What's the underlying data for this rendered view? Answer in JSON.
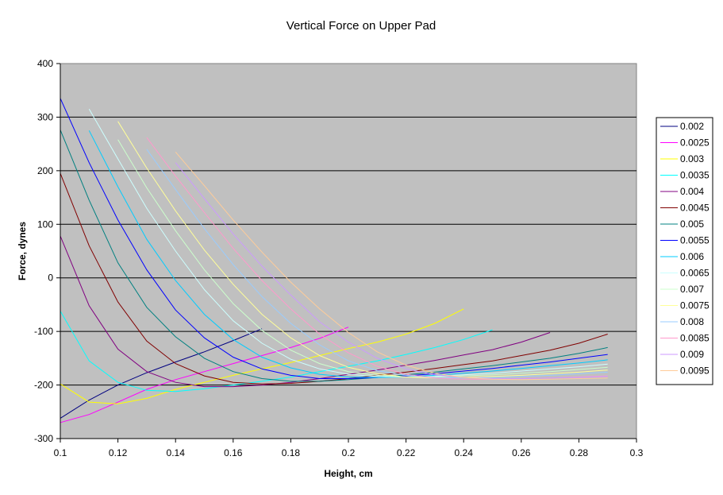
{
  "chart_data": {
    "type": "line",
    "title": "Vertical Force on Upper Pad",
    "xlabel": "Height, cm",
    "ylabel": "Force, dynes",
    "xlim": [
      0.1,
      0.3
    ],
    "ylim": [
      -300,
      400
    ],
    "xticks": [
      0.1,
      0.12,
      0.14,
      0.16,
      0.18,
      0.2,
      0.22,
      0.24,
      0.26,
      0.28,
      0.3
    ],
    "xtick_labels": [
      "0.1",
      "0.12",
      "0.14",
      "0.16",
      "0.18",
      "0.2",
      "0.22",
      "0.24",
      "0.26",
      "0.28",
      "0.3"
    ],
    "yticks": [
      -300,
      -200,
      -100,
      0,
      100,
      200,
      300,
      400
    ],
    "ytick_labels": [
      "-300",
      "-200",
      "-100",
      "0",
      "100",
      "200",
      "300",
      "400"
    ],
    "grid": "horizontal",
    "plot_background": "#c0c0c0",
    "legend_position": "right",
    "series": [
      {
        "name": "0.002",
        "color": "#000080",
        "x": [
          0.1,
          0.11,
          0.12,
          0.13,
          0.14,
          0.15,
          0.16,
          0.17
        ],
        "y": [
          -262,
          -228,
          -200,
          -177,
          -157,
          -138,
          -117,
          -95
        ]
      },
      {
        "name": "0.0025",
        "color": "#ff00ff",
        "x": [
          0.1,
          0.11,
          0.12,
          0.13,
          0.14,
          0.15,
          0.16,
          0.17,
          0.18,
          0.19,
          0.2
        ],
        "y": [
          -270,
          -255,
          -232,
          -208,
          -190,
          -175,
          -160,
          -145,
          -130,
          -113,
          -92
        ]
      },
      {
        "name": "0.003",
        "color": "#ffff00",
        "x": [
          0.1,
          0.11,
          0.12,
          0.13,
          0.14,
          0.15,
          0.16,
          0.17,
          0.18,
          0.19,
          0.2,
          0.21,
          0.22,
          0.23,
          0.24
        ],
        "y": [
          -198,
          -232,
          -235,
          -225,
          -208,
          -195,
          -182,
          -170,
          -158,
          -145,
          -132,
          -120,
          -105,
          -85,
          -58
        ]
      },
      {
        "name": "0.0035",
        "color": "#00ffff",
        "x": [
          0.1,
          0.11,
          0.12,
          0.13,
          0.14,
          0.15,
          0.16,
          0.17,
          0.18,
          0.19,
          0.2,
          0.21,
          0.22,
          0.23,
          0.24,
          0.25
        ],
        "y": [
          -62,
          -155,
          -195,
          -210,
          -212,
          -207,
          -200,
          -193,
          -185,
          -175,
          -165,
          -155,
          -143,
          -130,
          -115,
          -97
        ]
      },
      {
        "name": "0.004",
        "color": "#800080",
        "x": [
          0.1,
          0.11,
          0.12,
          0.13,
          0.14,
          0.15,
          0.16,
          0.17,
          0.18,
          0.19,
          0.2,
          0.21,
          0.22,
          0.23,
          0.24,
          0.25,
          0.26,
          0.27
        ],
        "y": [
          78,
          -52,
          -133,
          -175,
          -195,
          -203,
          -203,
          -200,
          -195,
          -188,
          -180,
          -172,
          -163,
          -154,
          -144,
          -134,
          -120,
          -102
        ]
      },
      {
        "name": "0.0045",
        "color": "#800000",
        "x": [
          0.1,
          0.11,
          0.12,
          0.13,
          0.14,
          0.15,
          0.16,
          0.17,
          0.18,
          0.19,
          0.2,
          0.21,
          0.22,
          0.23,
          0.24,
          0.25,
          0.26,
          0.27,
          0.28,
          0.29
        ],
        "y": [
          195,
          60,
          -45,
          -118,
          -160,
          -183,
          -195,
          -198,
          -197,
          -193,
          -188,
          -182,
          -176,
          -169,
          -162,
          -155,
          -145,
          -135,
          -122,
          -105
        ]
      },
      {
        "name": "0.005",
        "color": "#008080",
        "x": [
          0.1,
          0.11,
          0.12,
          0.13,
          0.14,
          0.15,
          0.16,
          0.17,
          0.18,
          0.19,
          0.2,
          0.21,
          0.22,
          0.23,
          0.24,
          0.25,
          0.26,
          0.27,
          0.28,
          0.29
        ],
        "y": [
          276,
          145,
          28,
          -55,
          -110,
          -150,
          -175,
          -188,
          -193,
          -193,
          -190,
          -186,
          -181,
          -176,
          -170,
          -164,
          -157,
          -150,
          -141,
          -130
        ]
      },
      {
        "name": "0.0055",
        "color": "#0000ff",
        "x": [
          0.1,
          0.11,
          0.12,
          0.13,
          0.14,
          0.15,
          0.16,
          0.17,
          0.18,
          0.19,
          0.2,
          0.21,
          0.22,
          0.23,
          0.24,
          0.25,
          0.26,
          0.27,
          0.28,
          0.29
        ],
        "y": [
          335,
          215,
          108,
          15,
          -60,
          -112,
          -148,
          -170,
          -182,
          -188,
          -188,
          -186,
          -183,
          -179,
          -174,
          -169,
          -163,
          -157,
          -150,
          -143
        ]
      },
      {
        "name": "0.006",
        "color": "#00ccff",
        "x": [
          0.11,
          0.12,
          0.13,
          0.14,
          0.15,
          0.16,
          0.17,
          0.18,
          0.19,
          0.2,
          0.21,
          0.22,
          0.23,
          0.24,
          0.25,
          0.26,
          0.27,
          0.28,
          0.29
        ],
        "y": [
          275,
          170,
          72,
          -5,
          -68,
          -115,
          -148,
          -168,
          -180,
          -185,
          -186,
          -185,
          -182,
          -178,
          -174,
          -169,
          -164,
          -159,
          -153
        ]
      },
      {
        "name": "0.0065",
        "color": "#ccffff",
        "x": [
          0.11,
          0.12,
          0.13,
          0.14,
          0.15,
          0.16,
          0.17,
          0.18,
          0.19,
          0.2,
          0.21,
          0.22,
          0.23,
          0.24,
          0.25,
          0.26,
          0.27,
          0.28,
          0.29
        ],
        "y": [
          315,
          222,
          130,
          50,
          -22,
          -80,
          -122,
          -152,
          -170,
          -180,
          -184,
          -185,
          -184,
          -181,
          -178,
          -174,
          -170,
          -166,
          -161
        ]
      },
      {
        "name": "0.007",
        "color": "#ccffcc",
        "x": [
          0.12,
          0.13,
          0.14,
          0.15,
          0.16,
          0.17,
          0.18,
          0.19,
          0.2,
          0.21,
          0.22,
          0.23,
          0.24,
          0.25,
          0.26,
          0.27,
          0.28,
          0.29
        ],
        "y": [
          258,
          168,
          88,
          15,
          -48,
          -98,
          -135,
          -160,
          -175,
          -182,
          -185,
          -185,
          -183,
          -181,
          -178,
          -175,
          -171,
          -167
        ]
      },
      {
        "name": "0.0075",
        "color": "#ffff99",
        "x": [
          0.12,
          0.13,
          0.14,
          0.15,
          0.16,
          0.17,
          0.18,
          0.19,
          0.2,
          0.21,
          0.22,
          0.23,
          0.24,
          0.25,
          0.26,
          0.27,
          0.28,
          0.29
        ],
        "y": [
          292,
          205,
          125,
          52,
          -12,
          -68,
          -112,
          -145,
          -167,
          -179,
          -185,
          -187,
          -186,
          -184,
          -182,
          -179,
          -176,
          -172
        ]
      },
      {
        "name": "0.008",
        "color": "#99ccff",
        "x": [
          0.13,
          0.14,
          0.15,
          0.16,
          0.17,
          0.18,
          0.19,
          0.2,
          0.21,
          0.22,
          0.23,
          0.24,
          0.25,
          0.26,
          0.27,
          0.28,
          0.29
        ],
        "y": [
          240,
          165,
          92,
          25,
          -35,
          -85,
          -125,
          -155,
          -173,
          -182,
          -186,
          -187,
          -186,
          -184,
          -182,
          -179,
          -176
        ]
      },
      {
        "name": "0.0085",
        "color": "#ff99cc",
        "x": [
          0.13,
          0.14,
          0.15,
          0.16,
          0.17,
          0.18,
          0.19,
          0.2,
          0.21,
          0.22,
          0.23,
          0.24,
          0.25,
          0.26,
          0.27,
          0.28,
          0.29
        ],
        "y": [
          262,
          190,
          122,
          55,
          -5,
          -58,
          -105,
          -140,
          -165,
          -180,
          -187,
          -189,
          -189,
          -188,
          -187,
          -185,
          -183
        ]
      },
      {
        "name": "0.009",
        "color": "#cc99ff",
        "x": [
          0.14,
          0.15,
          0.16,
          0.17,
          0.18,
          0.19,
          0.2,
          0.21,
          0.22,
          0.23,
          0.24,
          0.25,
          0.26,
          0.27,
          0.28,
          0.29
        ],
        "y": [
          215,
          148,
          82,
          22,
          -32,
          -82,
          -120,
          -150,
          -170,
          -181,
          -186,
          -188,
          -188,
          -187,
          -186,
          -184
        ]
      },
      {
        "name": "0.0095",
        "color": "#ffcc99",
        "x": [
          0.14,
          0.15,
          0.16,
          0.17,
          0.18,
          0.19,
          0.2,
          0.21,
          0.22,
          0.23,
          0.24,
          0.25,
          0.26,
          0.27,
          0.28,
          0.29
        ],
        "y": [
          235,
          172,
          108,
          48,
          -8,
          -58,
          -102,
          -138,
          -163,
          -178,
          -186,
          -189,
          -190,
          -189,
          -188,
          -187
        ]
      }
    ]
  }
}
